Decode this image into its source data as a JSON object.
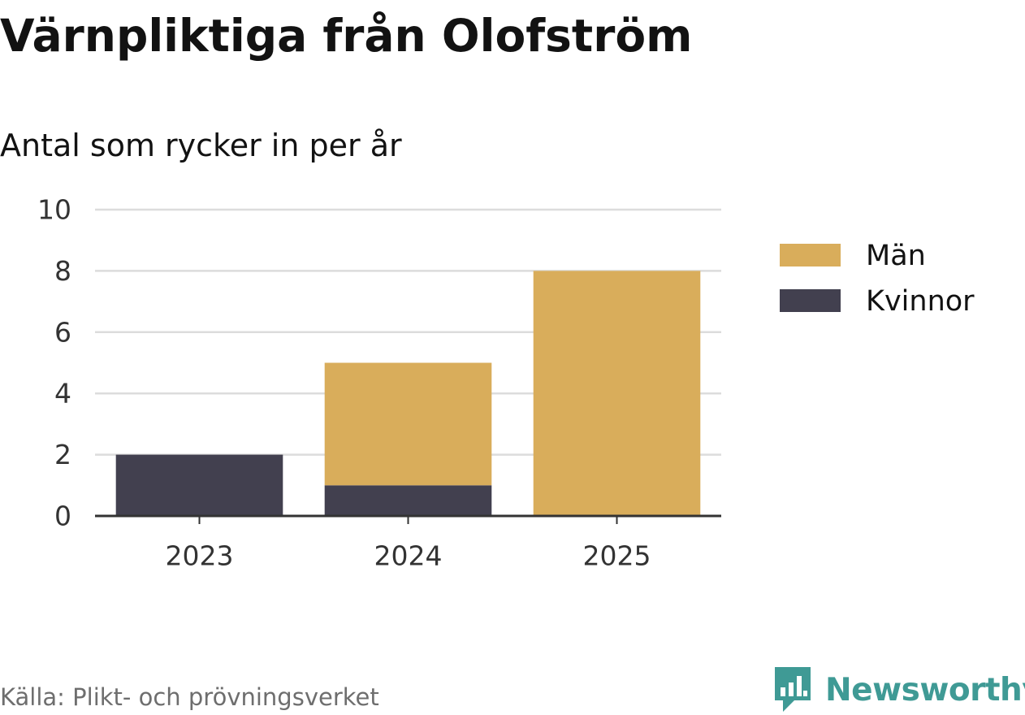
{
  "title": "Värnpliktiga från Olofström",
  "subtitle": "Antal som rycker in per år",
  "source": "Källa: Plikt- och prövningsverket",
  "brand": {
    "name": "Newsworthy",
    "logo_icon": "bar-chart-badge-icon"
  },
  "colors": {
    "men": "#d9ad5b",
    "women": "#42404f",
    "grid": "#dcdcdc",
    "axis": "#333333",
    "brand": "#3f9a95"
  },
  "chart_data": {
    "type": "bar",
    "stacked": true,
    "categories": [
      "2023",
      "2024",
      "2025"
    ],
    "series": [
      {
        "name": "Kvinnor",
        "color": "#42404f",
        "values": [
          2,
          1,
          0
        ]
      },
      {
        "name": "Män",
        "color": "#d9ad5b",
        "values": [
          0,
          4,
          8
        ]
      }
    ],
    "ylim": [
      0,
      10
    ],
    "yticks": [
      0,
      2,
      4,
      6,
      8,
      10
    ],
    "grid": true,
    "legend": {
      "placement": "right",
      "order": [
        "Män",
        "Kvinnor"
      ]
    }
  }
}
